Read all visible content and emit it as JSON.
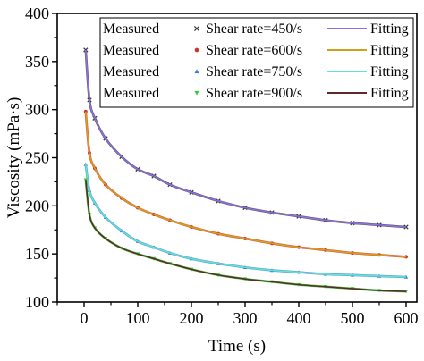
{
  "chart_data": {
    "type": "line",
    "xlabel": "Time (s)",
    "ylabel": "Viscosity (mPa·s)",
    "xlim": [
      -50,
      620
    ],
    "ylim": [
      100,
      400
    ],
    "xticks": [
      0,
      100,
      200,
      300,
      400,
      500,
      600
    ],
    "yticks": [
      100,
      150,
      200,
      250,
      300,
      350,
      400
    ],
    "grid": false,
    "legend_position": "top-right",
    "series": [
      {
        "name": "Shear rate=450/s",
        "measured_label": "Measured",
        "fitting_label": "Fitting",
        "marker": "x",
        "measured_color": "#3a3a3a",
        "fit_color": "#8f6fe0",
        "x": [
          3,
          10,
          20,
          40,
          70,
          100,
          130,
          160,
          200,
          250,
          300,
          350,
          400,
          450,
          500,
          550,
          600
        ],
        "y": [
          362,
          310,
          291,
          270,
          251,
          238,
          231,
          222,
          214,
          205,
          198,
          193,
          189,
          185,
          182,
          180,
          178
        ]
      },
      {
        "name": "Shear rate=600/s",
        "measured_label": "Measured",
        "fitting_label": "Fitting",
        "marker": "dot",
        "measured_color": "#d0312d",
        "fit_color": "#d4a017",
        "x": [
          3,
          10,
          20,
          40,
          70,
          100,
          130,
          160,
          200,
          250,
          300,
          350,
          400,
          450,
          500,
          550,
          600
        ],
        "y": [
          298,
          255,
          239,
          222,
          208,
          198,
          191,
          185,
          178,
          171,
          166,
          161,
          157,
          154,
          151,
          149,
          147
        ]
      },
      {
        "name": "Shear rate=750/s",
        "measured_label": "Measured",
        "fitting_label": "Fitting",
        "marker": "triangle",
        "measured_color": "#3d7fd8",
        "fit_color": "#5fe3cf",
        "x": [
          3,
          10,
          20,
          40,
          70,
          100,
          130,
          160,
          200,
          250,
          300,
          350,
          400,
          450,
          500,
          550,
          600
        ],
        "y": [
          243,
          216,
          203,
          188,
          174,
          163,
          157,
          151,
          145,
          140,
          136,
          133,
          131,
          129,
          128,
          127,
          126
        ]
      },
      {
        "name": "Shear rate=900/s",
        "measured_label": "Measured",
        "fitting_label": "Fitting",
        "marker": "triangle-down",
        "measured_color": "#33cc33",
        "fit_color": "#5c2a2a",
        "x": [
          3,
          10,
          20,
          40,
          70,
          100,
          130,
          160,
          200,
          250,
          300,
          350,
          400,
          450,
          500,
          550,
          600
        ],
        "y": [
          227,
          191,
          177,
          166,
          156,
          150,
          145,
          140,
          134,
          128,
          124,
          121,
          118,
          116,
          114,
          112,
          111
        ]
      }
    ]
  }
}
